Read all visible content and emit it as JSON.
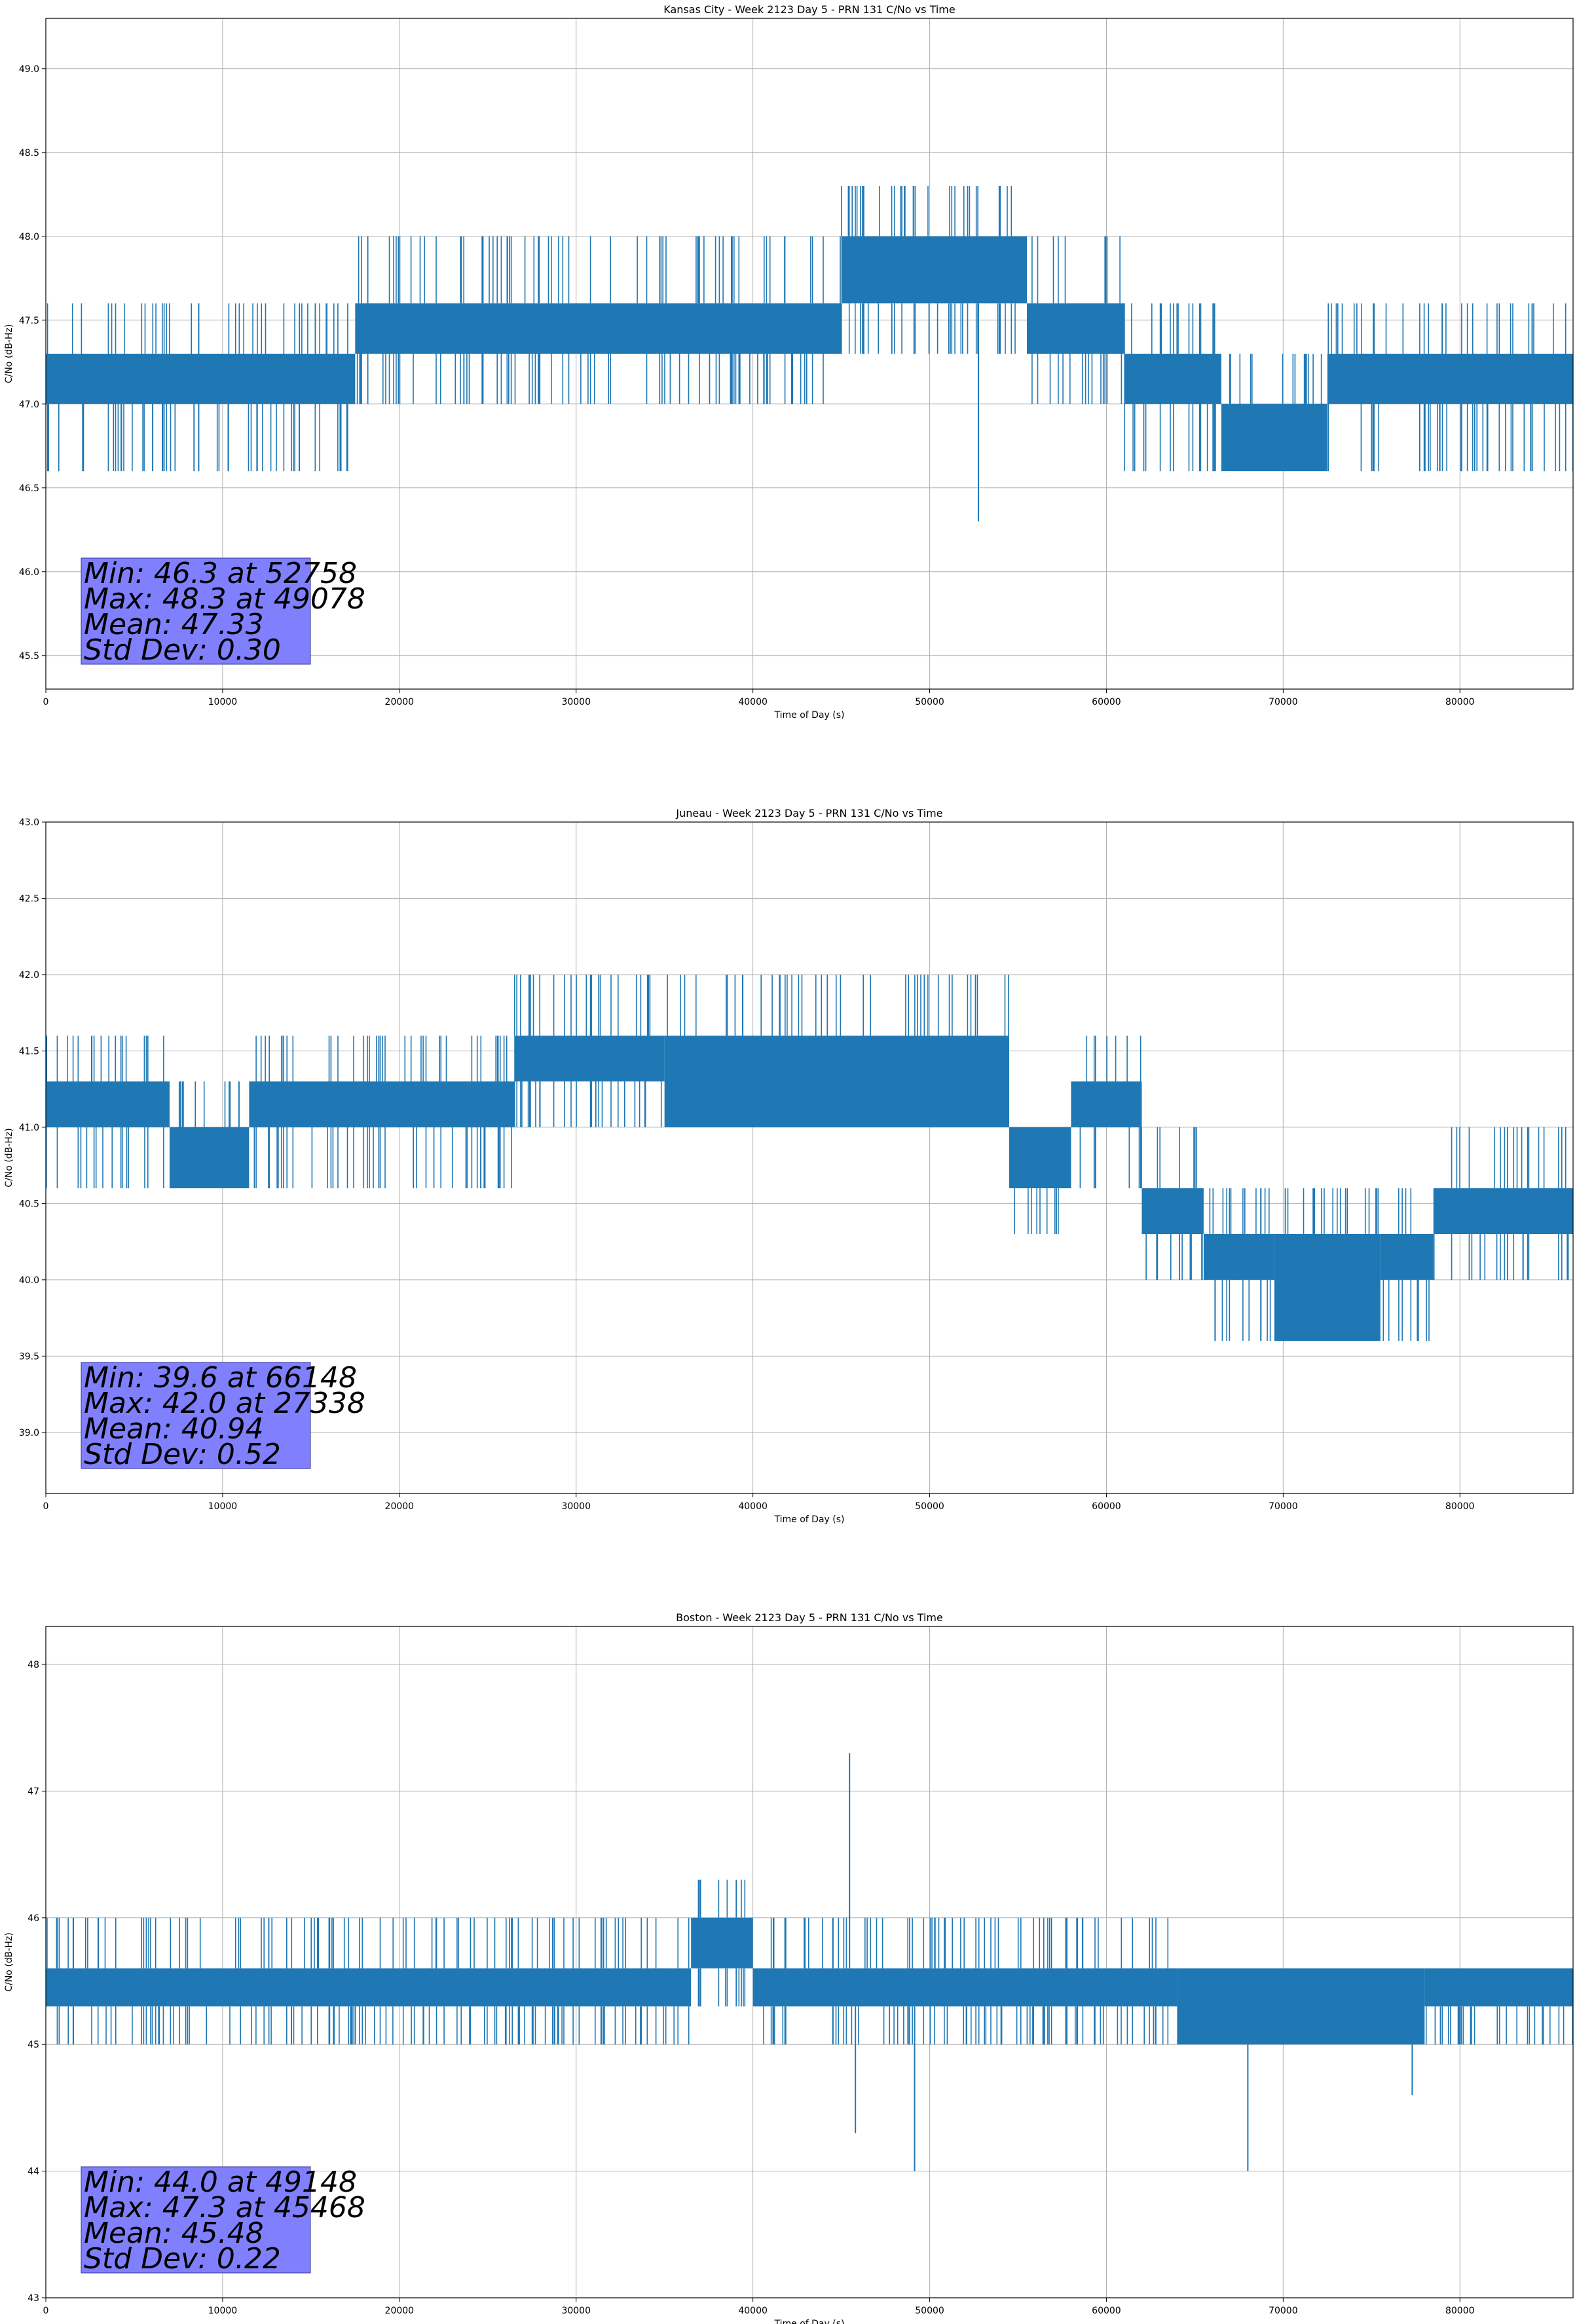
{
  "chart_data": [
    {
      "type": "line",
      "title": "Kansas City - Week 2123 Day 5 - PRN 131 C/No vs Time",
      "xlabel": "Time of Day (s)",
      "ylabel": "C/No (dB-Hz)",
      "xlim": [
        0,
        86400
      ],
      "ylim": [
        45.3,
        49.3
      ],
      "xticks": [
        0,
        10000,
        20000,
        30000,
        40000,
        50000,
        60000,
        70000,
        80000
      ],
      "yticks": [
        45.5,
        46.0,
        46.5,
        47.0,
        47.5,
        48.0,
        48.5,
        49.0
      ],
      "ytick_labels": [
        "45.5",
        "46.0",
        "46.5",
        "47.0",
        "47.5",
        "48.0",
        "48.5",
        "49.0"
      ],
      "grid": true,
      "series_color": "#1f77b4",
      "series": [
        {
          "segments": [
            {
              "x0": 0,
              "x1": 17500,
              "band": [
                47.0,
                47.3
              ],
              "spikes_down": 46.6,
              "spikes_up": 47.6
            },
            {
              "x0": 17500,
              "x1": 45000,
              "band": [
                47.3,
                47.6
              ],
              "spikes_down": 47.0,
              "spikes_up": 48.0
            },
            {
              "x0": 45000,
              "x1": 55500,
              "band": [
                47.6,
                48.0
              ],
              "spikes_down": 47.3,
              "spikes_up": 48.3
            },
            {
              "x0": 55500,
              "x1": 61000,
              "band": [
                47.3,
                47.6
              ],
              "spikes_down": 47.0,
              "spikes_up": 48.0
            },
            {
              "x0": 61000,
              "x1": 66500,
              "band": [
                47.0,
                47.3
              ],
              "spikes_down": 46.6,
              "spikes_up": 47.6
            },
            {
              "x0": 66500,
              "x1": 72500,
              "band": [
                46.6,
                47.0
              ],
              "spikes_down": 46.6,
              "spikes_up": 47.3
            },
            {
              "x0": 72500,
              "x1": 86400,
              "band": [
                47.0,
                47.3
              ],
              "spikes_down": 46.6,
              "spikes_up": 47.6
            }
          ],
          "extremes": [
            {
              "x": 52758,
              "y": 46.3
            },
            {
              "x": 49078,
              "y": 48.3
            }
          ]
        }
      ],
      "stats": {
        "min": "Min: 46.3 at 52758",
        "max": "Max: 48.3 at 49078",
        "mean": "Mean: 47.33",
        "std": "Std Dev: 0.30"
      }
    },
    {
      "type": "line",
      "title": "Juneau - Week 2123 Day 5 - PRN 131 C/No vs Time",
      "xlabel": "Time of Day (s)",
      "ylabel": "C/No (dB-Hz)",
      "xlim": [
        0,
        86400
      ],
      "ylim": [
        38.6,
        43.0
      ],
      "xticks": [
        0,
        10000,
        20000,
        30000,
        40000,
        50000,
        60000,
        70000,
        80000
      ],
      "yticks": [
        39.0,
        39.5,
        40.0,
        40.5,
        41.0,
        41.5,
        42.0,
        42.5,
        43.0
      ],
      "ytick_labels": [
        "39.0",
        "39.5",
        "40.0",
        "40.5",
        "41.0",
        "41.5",
        "42.0",
        "42.5",
        "43.0"
      ],
      "grid": true,
      "series_color": "#1f77b4",
      "series": [
        {
          "segments": [
            {
              "x0": 0,
              "x1": 7000,
              "band": [
                41.0,
                41.3
              ],
              "spikes_down": 40.6,
              "spikes_up": 41.6
            },
            {
              "x0": 7000,
              "x1": 11500,
              "band": [
                40.6,
                41.0
              ],
              "spikes_down": 40.6,
              "spikes_up": 41.3
            },
            {
              "x0": 11500,
              "x1": 26500,
              "band": [
                41.0,
                41.3
              ],
              "spikes_down": 40.6,
              "spikes_up": 41.6
            },
            {
              "x0": 26500,
              "x1": 35000,
              "band": [
                41.3,
                41.6
              ],
              "spikes_down": 41.0,
              "spikes_up": 42.0
            },
            {
              "x0": 35000,
              "x1": 54500,
              "band": [
                41.0,
                41.6
              ],
              "spikes_down": 41.0,
              "spikes_up": 42.0
            },
            {
              "x0": 54500,
              "x1": 58000,
              "band": [
                40.6,
                41.0
              ],
              "spikes_down": 40.3,
              "spikes_up": 41.0
            },
            {
              "x0": 58000,
              "x1": 62000,
              "band": [
                41.0,
                41.3
              ],
              "spikes_down": 40.6,
              "spikes_up": 41.6
            },
            {
              "x0": 62000,
              "x1": 65500,
              "band": [
                40.3,
                40.6
              ],
              "spikes_down": 40.0,
              "spikes_up": 41.0
            },
            {
              "x0": 65500,
              "x1": 69500,
              "band": [
                40.0,
                40.3
              ],
              "spikes_down": 39.6,
              "spikes_up": 40.6
            },
            {
              "x0": 69500,
              "x1": 75500,
              "band": [
                39.6,
                40.3
              ],
              "spikes_down": 39.6,
              "spikes_up": 40.6
            },
            {
              "x0": 75500,
              "x1": 78500,
              "band": [
                40.0,
                40.3
              ],
              "spikes_down": 39.6,
              "spikes_up": 40.6
            },
            {
              "x0": 78500,
              "x1": 86400,
              "band": [
                40.3,
                40.6
              ],
              "spikes_down": 40.0,
              "spikes_up": 41.0
            }
          ],
          "extremes": [
            {
              "x": 66148,
              "y": 39.6
            },
            {
              "x": 27338,
              "y": 42.0
            }
          ]
        }
      ],
      "stats": {
        "min": "Min: 39.6 at 66148",
        "max": "Max: 42.0 at 27338",
        "mean": "Mean: 40.94",
        "std": "Std Dev: 0.52"
      }
    },
    {
      "type": "line",
      "title": "Boston - Week 2123 Day 5 - PRN 131 C/No vs Time",
      "xlabel": "Time of Day (s)",
      "ylabel": "C/No (dB-Hz)",
      "xlim": [
        0,
        86400
      ],
      "ylim": [
        43.0,
        48.3
      ],
      "xticks": [
        0,
        10000,
        20000,
        30000,
        40000,
        50000,
        60000,
        70000,
        80000
      ],
      "yticks": [
        43,
        44,
        45,
        46,
        47,
        48
      ],
      "ytick_labels": [
        "43",
        "44",
        "45",
        "46",
        "47",
        "48"
      ],
      "grid": true,
      "series_color": "#1f77b4",
      "series": [
        {
          "segments": [
            {
              "x0": 0,
              "x1": 36500,
              "band": [
                45.3,
                45.6
              ],
              "spikes_down": 45.0,
              "spikes_up": 46.0
            },
            {
              "x0": 36500,
              "x1": 40000,
              "band": [
                45.6,
                46.0
              ],
              "spikes_down": 45.3,
              "spikes_up": 46.3
            },
            {
              "x0": 40000,
              "x1": 64000,
              "band": [
                45.3,
                45.6
              ],
              "spikes_down": 45.0,
              "spikes_up": 46.0
            },
            {
              "x0": 64000,
              "x1": 78000,
              "band": [
                45.0,
                45.6
              ],
              "spikes_down": 45.0,
              "spikes_up": 45.6
            },
            {
              "x0": 78000,
              "x1": 86400,
              "band": [
                45.3,
                45.6
              ],
              "spikes_down": 45.0,
              "spikes_up": 45.6
            }
          ],
          "extremes": [
            {
              "x": 49148,
              "y": 44.0
            },
            {
              "x": 45468,
              "y": 47.3
            },
            {
              "x": 45800,
              "y": 44.3
            },
            {
              "x": 68000,
              "y": 44.0
            },
            {
              "x": 77300,
              "y": 44.6
            }
          ]
        }
      ],
      "stats": {
        "min": "Min: 44.0 at 49148",
        "max": "Max: 47.3 at 45468",
        "mean": "Mean: 45.48",
        "std": "Std Dev: 0.22"
      }
    }
  ]
}
